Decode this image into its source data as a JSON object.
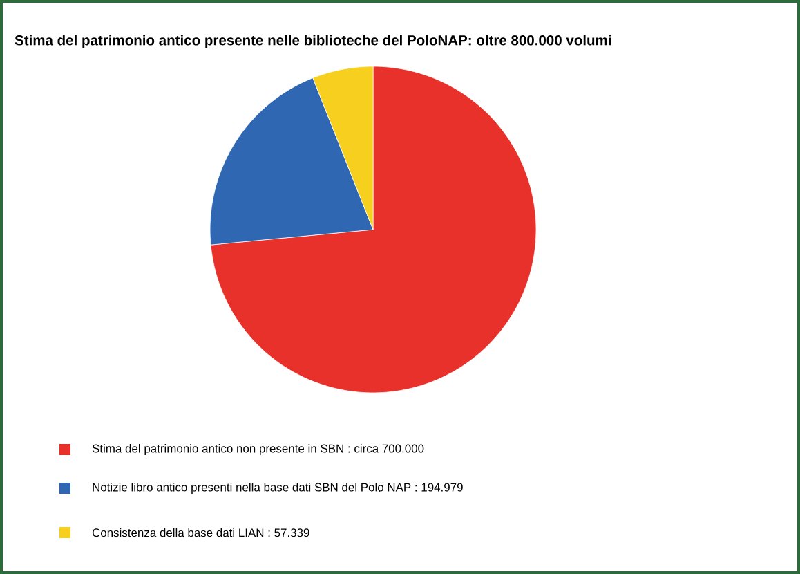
{
  "chart_data": {
    "type": "pie",
    "title": "Stima del patrimonio antico presente nelle biblioteche del PoloNAP: oltre 800.000 volumi",
    "categories": [
      "Stima del patrimonio antico non presente in SBN : circa 700.000",
      "Notizie libro antico presenti nella base dati SBN del Polo NAP : 194.979",
      "Consistenza della base dati LIAN : 57.339"
    ],
    "values": [
      700000,
      194979,
      57339
    ],
    "colors": [
      "#e8312a",
      "#2f67b2",
      "#f6cf1f"
    ],
    "legend": "bottom"
  }
}
